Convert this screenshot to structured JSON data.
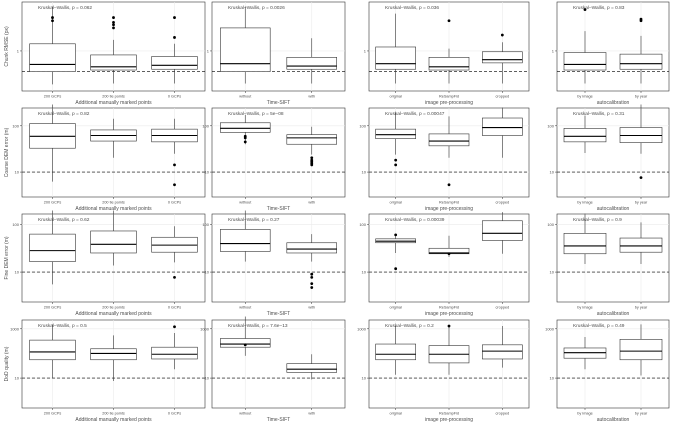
{
  "figure": {
    "row_ylabels": [
      "Chunk RMSE (px)",
      "Coarse DEM error (m)",
      "Fine DEM error (m)",
      "DoD quality (m)"
    ],
    "col_xlabels": [
      "Additional manually marked points",
      "Time-SIFT",
      "image pre-processing",
      "autocalibration"
    ],
    "col_categories": [
      [
        "200 GCPs",
        "200 tie points",
        "0 GCPs"
      ],
      [
        "without",
        "with"
      ],
      [
        "original",
        "ReSampFid",
        "cropped"
      ],
      [
        "by image",
        "by year"
      ]
    ],
    "row_yticks": [
      [
        "1"
      ],
      [
        "100",
        "10"
      ],
      [
        "100",
        "10"
      ],
      [
        "1000",
        "10"
      ]
    ],
    "row_ytick_pos": [
      [
        0.55
      ],
      [
        0.2,
        0.72
      ],
      [
        0.12,
        0.66
      ],
      [
        0.1,
        0.66
      ]
    ],
    "row_ref_pos": [
      0.78,
      0.72,
      0.66,
      0.66
    ],
    "colors": {
      "box_stroke": "#333333",
      "grid": "#ebebeb",
      "panel_border": "#333333",
      "text": "#4d4d4d"
    }
  },
  "chart_data": [
    {
      "type": "box",
      "row": 0,
      "col": 0,
      "title": "Kruskal–Wallis, p = 0.062",
      "boxes": [
        {
          "q1": 0.18,
          "med": 0.27,
          "q3": 0.53,
          "lo": 0.02,
          "hi": 1.0,
          "out": [
            0.82,
            0.86
          ]
        },
        {
          "q1": 0.2,
          "med": 0.24,
          "q3": 0.39,
          "lo": 0.03,
          "hi": 0.58,
          "out": [
            0.73,
            0.77,
            0.8,
            0.86
          ]
        },
        {
          "q1": 0.21,
          "med": 0.26,
          "q3": 0.37,
          "lo": 0.03,
          "hi": 0.53,
          "out": [
            0.61,
            0.86
          ]
        }
      ]
    },
    {
      "type": "box",
      "row": 0,
      "col": 1,
      "title": "Kruskal–Wallis, p = 0.0026",
      "boxes": [
        {
          "q1": 0.18,
          "med": 0.28,
          "q3": 0.73,
          "lo": 0.03,
          "hi": 1.0,
          "out": []
        },
        {
          "q1": 0.21,
          "med": 0.25,
          "q3": 0.36,
          "lo": 0.03,
          "hi": 0.6,
          "out": []
        }
      ]
    },
    {
      "type": "box",
      "row": 0,
      "col": 2,
      "title": "Kruskal–Wallis, p = 0.036",
      "boxes": [
        {
          "q1": 0.21,
          "med": 0.28,
          "q3": 0.49,
          "lo": 0.03,
          "hi": 0.91,
          "out": []
        },
        {
          "q1": 0.2,
          "med": 0.24,
          "q3": 0.36,
          "lo": 0.03,
          "hi": 0.47,
          "out": [
            0.82
          ]
        },
        {
          "q1": 0.29,
          "med": 0.33,
          "q3": 0.43,
          "lo": 0.03,
          "hi": 0.55,
          "out": [
            0.64
          ]
        }
      ]
    },
    {
      "type": "box",
      "row": 0,
      "col": 3,
      "title": "Kruskal–Wallis, p = 0.83",
      "boxes": [
        {
          "q1": 0.2,
          "med": 0.27,
          "q3": 0.42,
          "lo": 0.03,
          "hi": 0.69,
          "out": [
            0.96
          ]
        },
        {
          "q1": 0.21,
          "med": 0.28,
          "q3": 0.4,
          "lo": 0.03,
          "hi": 0.63,
          "out": [
            0.82,
            0.84
          ]
        }
      ]
    },
    {
      "type": "box",
      "row": 1,
      "col": 0,
      "title": "Kruskal–Wallis, p = 0.82",
      "boxes": [
        {
          "q1": 0.55,
          "med": 0.7,
          "q3": 0.86,
          "lo": 0.13,
          "hi": 1.1,
          "out": []
        },
        {
          "q1": 0.64,
          "med": 0.71,
          "q3": 0.78,
          "lo": 0.43,
          "hi": 0.92,
          "out": []
        },
        {
          "q1": 0.63,
          "med": 0.71,
          "q3": 0.79,
          "lo": 0.48,
          "hi": 0.92,
          "out": [
            0.34,
            0.09
          ]
        }
      ]
    },
    {
      "type": "box",
      "row": 1,
      "col": 1,
      "title": "Kruskal–Wallis, p = 5e−08",
      "boxes": [
        {
          "q1": 0.75,
          "med": 0.8,
          "q3": 0.87,
          "lo": 0.6,
          "hi": 0.97,
          "out": [
            0.63,
            0.68,
            0.7
          ]
        },
        {
          "q1": 0.6,
          "med": 0.68,
          "q3": 0.72,
          "lo": 0.47,
          "hi": 0.82,
          "out": [
            0.34,
            0.36,
            0.38,
            0.4,
            0.43
          ]
        }
      ]
    },
    {
      "type": "box",
      "row": 1,
      "col": 2,
      "title": "Kruskal–Wallis, p = 0.00047",
      "boxes": [
        {
          "q1": 0.67,
          "med": 0.72,
          "q3": 0.79,
          "lo": 0.47,
          "hi": 1.0,
          "out": [
            0.34,
            0.4
          ]
        },
        {
          "q1": 0.58,
          "med": 0.64,
          "q3": 0.73,
          "lo": 0.43,
          "hi": 0.95,
          "out": [
            0.09
          ]
        },
        {
          "q1": 0.71,
          "med": 0.81,
          "q3": 0.93,
          "lo": 0.43,
          "hi": 1.06,
          "out": []
        }
      ]
    },
    {
      "type": "box",
      "row": 1,
      "col": 3,
      "title": "Kruskal–Wallis, p = 0.31",
      "boxes": [
        {
          "q1": 0.63,
          "med": 0.7,
          "q3": 0.8,
          "lo": 0.49,
          "hi": 0.96,
          "out": []
        },
        {
          "q1": 0.62,
          "med": 0.71,
          "q3": 0.81,
          "lo": 0.48,
          "hi": 1.1,
          "out": [
            0.18
          ]
        }
      ]
    },
    {
      "type": "box",
      "row": 2,
      "col": 0,
      "title": "Kruskal–Wallis, p = 0.62",
      "boxes": [
        {
          "q1": 0.45,
          "med": 0.59,
          "q3": 0.8,
          "lo": 0.16,
          "hi": 1.1,
          "out": []
        },
        {
          "q1": 0.56,
          "med": 0.67,
          "q3": 0.84,
          "lo": 0.4,
          "hi": 1.1,
          "out": []
        },
        {
          "q1": 0.57,
          "med": 0.66,
          "q3": 0.76,
          "lo": 0.44,
          "hi": 0.9,
          "out": [
            0.25
          ]
        }
      ]
    },
    {
      "type": "box",
      "row": 2,
      "col": 1,
      "title": "Kruskal–Wallis, p = 0.27",
      "boxes": [
        {
          "q1": 0.58,
          "med": 0.68,
          "q3": 0.86,
          "lo": 0.45,
          "hi": 1.1,
          "out": []
        },
        {
          "q1": 0.56,
          "med": 0.61,
          "q3": 0.69,
          "lo": 0.45,
          "hi": 0.8,
          "out": [
            0.29,
            0.25,
            0.17,
            0.12
          ]
        }
      ]
    },
    {
      "type": "box",
      "row": 2,
      "col": 2,
      "title": "Kruskal–Wallis, p = 0.00039",
      "boxes": [
        {
          "q1": 0.69,
          "med": 0.71,
          "q3": 0.74,
          "lo": 0.56,
          "hi": 0.8,
          "out": [
            0.36,
            0.79
          ]
        },
        {
          "q1": 0.55,
          "med": 0.56,
          "q3": 0.62,
          "lo": 0.51,
          "hi": 0.78,
          "out": [
            0.55
          ]
        },
        {
          "q1": 0.72,
          "med": 0.81,
          "q3": 0.97,
          "lo": 0.55,
          "hi": 1.08,
          "out": []
        }
      ]
    },
    {
      "type": "box",
      "row": 2,
      "col": 3,
      "title": "Kruskal–Wallis, p = 0.9",
      "boxes": [
        {
          "q1": 0.55,
          "med": 0.65,
          "q3": 0.81,
          "lo": 0.42,
          "hi": 1.06,
          "out": []
        },
        {
          "q1": 0.57,
          "med": 0.65,
          "q3": 0.75,
          "lo": 0.42,
          "hi": 0.95,
          "out": []
        }
      ]
    },
    {
      "type": "box",
      "row": 3,
      "col": 0,
      "title": "Kruskal–Wallis, p = 0.5",
      "boxes": [
        {
          "q1": 0.55,
          "med": 0.65,
          "q3": 0.8,
          "lo": 0.32,
          "hi": 1.0,
          "out": []
        },
        {
          "q1": 0.55,
          "med": 0.63,
          "q3": 0.69,
          "lo": 0.28,
          "hi": 0.86,
          "out": []
        },
        {
          "q1": 0.56,
          "med": 0.62,
          "q3": 0.71,
          "lo": 0.43,
          "hi": 0.89,
          "out": [
            0.97
          ]
        }
      ]
    },
    {
      "type": "box",
      "row": 3,
      "col": 1,
      "title": "Kruskal–Wallis, p = 7.6e−13",
      "boxes": [
        {
          "q1": 0.71,
          "med": 0.75,
          "q3": 0.82,
          "lo": 0.6,
          "hi": 1.1,
          "out": [
            0.74
          ]
        },
        {
          "q1": 0.39,
          "med": 0.43,
          "q3": 0.5,
          "lo": 0.3,
          "hi": 0.62,
          "out": []
        }
      ]
    },
    {
      "type": "box",
      "row": 3,
      "col": 2,
      "title": "Kruskal–Wallis, p = 0.2",
      "boxes": [
        {
          "q1": 0.55,
          "med": 0.62,
          "q3": 0.75,
          "lo": 0.36,
          "hi": 0.98,
          "out": []
        },
        {
          "q1": 0.51,
          "med": 0.62,
          "q3": 0.73,
          "lo": 0.36,
          "hi": 0.97,
          "out": [
            0.98
          ]
        },
        {
          "q1": 0.56,
          "med": 0.66,
          "q3": 0.74,
          "lo": 0.45,
          "hi": 0.98,
          "out": []
        }
      ]
    },
    {
      "type": "box",
      "row": 3,
      "col": 3,
      "title": "Kruskal–Wallis, p = 0.49",
      "boxes": [
        {
          "q1": 0.57,
          "med": 0.64,
          "q3": 0.7,
          "lo": 0.43,
          "hi": 0.84,
          "out": []
        },
        {
          "q1": 0.55,
          "med": 0.66,
          "q3": 0.81,
          "lo": 0.35,
          "hi": 1.0,
          "out": []
        }
      ]
    }
  ]
}
